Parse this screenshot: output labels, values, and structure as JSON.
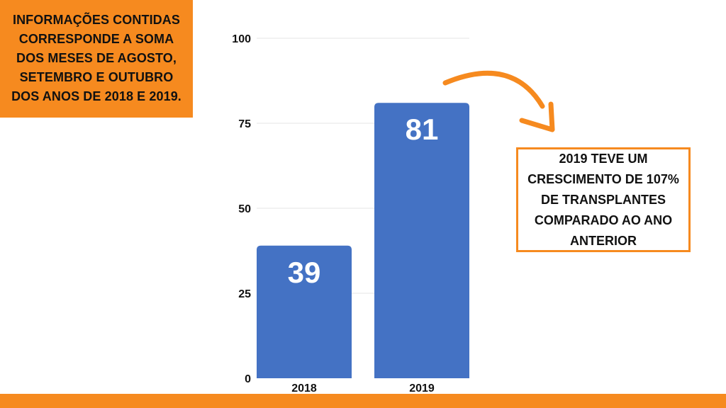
{
  "info_box": {
    "text": "INFORMAÇÕES CONTIDAS\nCORRESPONDE A SOMA\nDOS MESES DE AGOSTO,\nSETEMBRO E OUTUBRO\nDOS ANOS DE 2018 E 2019."
  },
  "callout": {
    "text": "2019 TEVE UM\nCRESCIMENTO DE 107%\nDE TRANSPLANTES\nCOMPARADO AO ANO\nANTERIOR"
  },
  "colors": {
    "accent": "#f68a1f",
    "bar": "#4472c4",
    "gridline": "#e5e5e5",
    "text": "#111111"
  },
  "chart_data": {
    "type": "bar",
    "categories": [
      "2018",
      "2019"
    ],
    "values": [
      39,
      81
    ],
    "ylim": [
      0,
      100
    ],
    "yticks": [
      0,
      25,
      50,
      75,
      100
    ],
    "grid": true,
    "data_labels": true
  }
}
